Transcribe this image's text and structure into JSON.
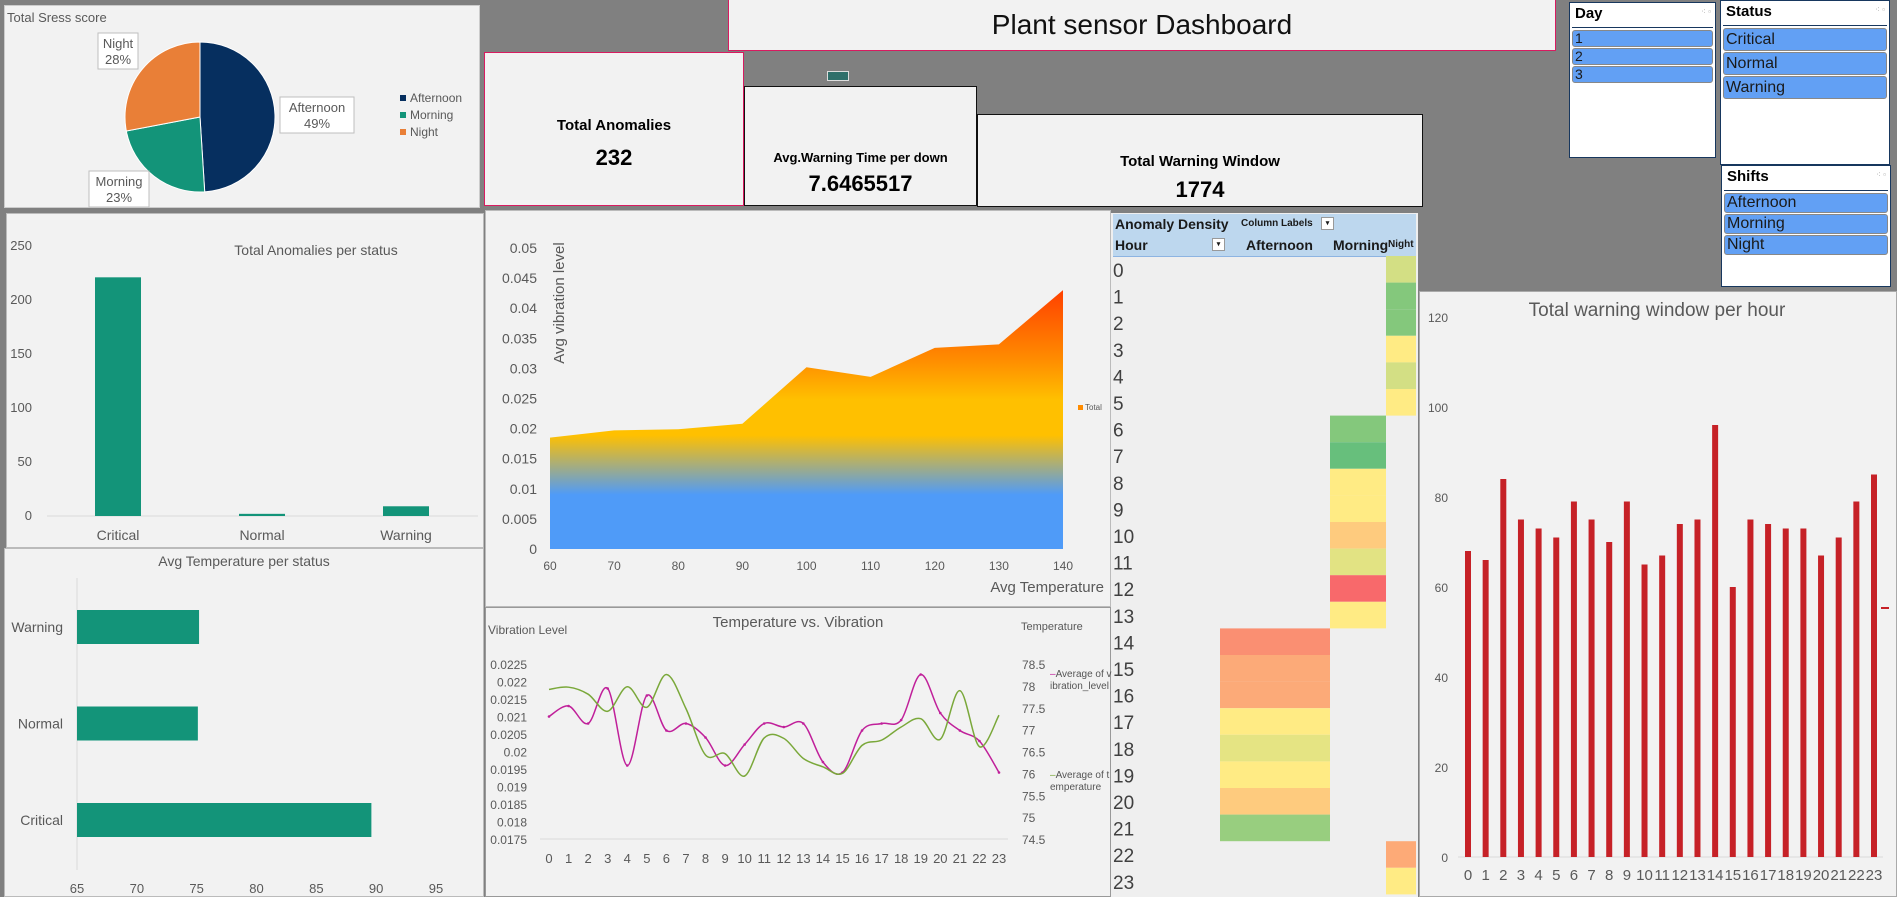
{
  "header": {
    "title": "Plant sensor Dashboard"
  },
  "kpis": [
    {
      "label": "Total Anomalies",
      "value": "232"
    },
    {
      "label": "Avg.Warning Time per down",
      "value": "7.6465517"
    },
    {
      "label": "Total Warning Window",
      "value": "1774"
    }
  ],
  "slicers": {
    "day": {
      "title": "Day",
      "items": [
        "1",
        "2",
        "3"
      ]
    },
    "status": {
      "title": "Status",
      "items": [
        "Critical",
        "Normal",
        "Warning"
      ]
    },
    "shifts": {
      "title": "Shifts",
      "items": [
        "Afternoon",
        "Morning",
        "Night"
      ]
    }
  },
  "icons": {
    "slicer_clear": "multi-select-icon",
    "pivot_filter": "dropdown-filter-icon",
    "table_tool": "table-icon"
  },
  "chart_data": [
    {
      "id": "stress",
      "type": "pie",
      "title": "Total Sress score",
      "categories": [
        "Afternoon",
        "Morning",
        "Night"
      ],
      "values": [
        49,
        23,
        28
      ],
      "data_labels": [
        "49%",
        "23%",
        "28%"
      ],
      "colors": [
        "#062f5f",
        "#139479",
        "#e97f37"
      ],
      "legend_position": "right"
    },
    {
      "id": "anomalies",
      "type": "bar",
      "title": "Total  Anomalies per status",
      "categories": [
        "Critical",
        "Normal",
        "Warning"
      ],
      "values": [
        221,
        2,
        9
      ],
      "ylim": [
        0,
        250
      ],
      "yticks": [
        "0",
        "50",
        "100",
        "150",
        "200",
        "250"
      ],
      "color": "#139479"
    },
    {
      "id": "avgtemp",
      "type": "bar",
      "orientation": "horizontal",
      "title": "Avg Temperature per status",
      "categories": [
        "Warning",
        "Normal",
        "Critical"
      ],
      "values": [
        75.2,
        75.1,
        89.6
      ],
      "xlim": [
        65,
        95
      ],
      "xticks": [
        "65",
        "70",
        "75",
        "80",
        "85",
        "90",
        "95"
      ],
      "color": "#139479"
    },
    {
      "id": "area",
      "type": "area",
      "xlabel": "Avg Temperature",
      "ylabel": "Avg vibration level",
      "x": [
        60,
        70,
        80,
        90,
        100,
        110,
        120,
        130,
        140
      ],
      "y": [
        0.0185,
        0.0197,
        0.0199,
        0.0208,
        0.0302,
        0.0286,
        0.0334,
        0.034,
        0.043
      ],
      "xticks": [
        "60",
        "70",
        "80",
        "90",
        "100",
        "110",
        "120",
        "130",
        "140"
      ],
      "yticks": [
        "0",
        "0.005",
        "0.01",
        "0.015",
        "0.02",
        "0.025",
        "0.03",
        "0.035",
        "0.04",
        "0.045",
        "0.05"
      ],
      "ylim": [
        0,
        0.05
      ],
      "legend": [
        "Total"
      ],
      "gradient_colors": [
        "#4f9bf8",
        "#ffc000",
        "#ff8c00",
        "#ff3300"
      ]
    },
    {
      "id": "tempvib",
      "type": "line",
      "title": "Temperature vs. Vibration",
      "ylabel": "Vibration Level",
      "y2label": "Temperature",
      "x": [
        "0",
        "1",
        "2",
        "3",
        "4",
        "5",
        "6",
        "7",
        "8",
        "9",
        "10",
        "11",
        "12",
        "13",
        "14",
        "15",
        "16",
        "17",
        "18",
        "19",
        "20",
        "21",
        "22",
        "23"
      ],
      "yticks": [
        "0.0175",
        "0.018",
        "0.0185",
        "0.019",
        "0.0195",
        "0.02",
        "0.0205",
        "0.021",
        "0.0215",
        "0.022",
        "0.0225"
      ],
      "y2ticks": [
        "74.5",
        "75",
        "75.5",
        "76",
        "76.5",
        "77",
        "77.5",
        "78",
        "78.5"
      ],
      "ylim": [
        0.0175,
        0.0225
      ],
      "y2lim": [
        74.5,
        78.5
      ],
      "series": [
        {
          "name": "Average of vibration_level",
          "axis": "left",
          "color": "#c0209a",
          "values": [
            0.021,
            0.0213,
            0.0208,
            0.0218,
            0.0196,
            0.0216,
            0.0206,
            0.0208,
            0.0204,
            0.0196,
            0.0202,
            0.0208,
            0.0207,
            0.0208,
            0.0197,
            0.0194,
            0.0206,
            0.0208,
            0.0209,
            0.0222,
            0.0211,
            0.0206,
            0.0203,
            0.0194
          ]
        },
        {
          "name": "Average of temperature",
          "axis": "right",
          "color": "#7aa83a",
          "values": [
            77.92,
            77.97,
            77.81,
            77.42,
            77.98,
            77.51,
            78.26,
            77.48,
            76.42,
            76.45,
            75.94,
            76.81,
            76.8,
            76.34,
            76.15,
            76.0,
            76.64,
            76.76,
            77.06,
            77.25,
            76.78,
            77.89,
            76.61,
            77.33
          ]
        }
      ]
    },
    {
      "id": "density",
      "type": "heatmap",
      "title": "Anomaly Density",
      "column_labels_caption": "Column Labels",
      "row_header": "Hour",
      "columns": [
        "Afternoon",
        "Morning",
        "Night"
      ],
      "rows": [
        "0",
        "1",
        "2",
        "3",
        "4",
        "5",
        "6",
        "7",
        "8",
        "9",
        "10",
        "11",
        "12",
        "13",
        "14",
        "15",
        "16",
        "17",
        "18",
        "19",
        "20",
        "21",
        "22",
        "23"
      ],
      "cells": [
        {
          "hour": 0,
          "col": "Night",
          "color": "#d3df84"
        },
        {
          "hour": 1,
          "col": "Night",
          "color": "#84c87c"
        },
        {
          "hour": 2,
          "col": "Night",
          "color": "#84c87c"
        },
        {
          "hour": 3,
          "col": "Night",
          "color": "#ffeb84"
        },
        {
          "hour": 4,
          "col": "Night",
          "color": "#d3df84"
        },
        {
          "hour": 5,
          "col": "Night",
          "color": "#ffeb84"
        },
        {
          "hour": 6,
          "col": "Morning",
          "color": "#84c87c"
        },
        {
          "hour": 7,
          "col": "Morning",
          "color": "#67bf7c"
        },
        {
          "hour": 8,
          "col": "Morning",
          "color": "#ffeb84"
        },
        {
          "hour": 9,
          "col": "Morning",
          "color": "#ffeb84"
        },
        {
          "hour": 10,
          "col": "Morning",
          "color": "#fecb7e"
        },
        {
          "hour": 11,
          "col": "Morning",
          "color": "#e2e383"
        },
        {
          "hour": 12,
          "col": "Morning",
          "color": "#f8696b"
        },
        {
          "hour": 13,
          "col": "Morning",
          "color": "#ffeb84"
        },
        {
          "hour": 14,
          "col": "Afternoon",
          "color": "#fa8f72"
        },
        {
          "hour": 15,
          "col": "Afternoon",
          "color": "#fcaa78"
        },
        {
          "hour": 16,
          "col": "Afternoon",
          "color": "#fcaa78"
        },
        {
          "hour": 17,
          "col": "Afternoon",
          "color": "#ffeb84"
        },
        {
          "hour": 18,
          "col": "Afternoon",
          "color": "#e5e483"
        },
        {
          "hour": 19,
          "col": "Afternoon",
          "color": "#ffeb84"
        },
        {
          "hour": 20,
          "col": "Afternoon",
          "color": "#fecb7e"
        },
        {
          "hour": 21,
          "col": "Afternoon",
          "color": "#98ce7f"
        },
        {
          "hour": 22,
          "col": "Night",
          "color": "#fdaa77"
        },
        {
          "hour": 23,
          "col": "Night",
          "color": "#ffeb84"
        }
      ]
    },
    {
      "id": "warnhour",
      "type": "bar",
      "title": "Total warning window per hour",
      "categories": [
        "0",
        "1",
        "2",
        "3",
        "4",
        "5",
        "6",
        "7",
        "8",
        "9",
        "10",
        "11",
        "12",
        "13",
        "14",
        "15",
        "16",
        "17",
        "18",
        "19",
        "20",
        "21",
        "22",
        "23"
      ],
      "values": [
        68,
        66,
        84,
        75,
        73,
        71,
        79,
        75,
        70,
        79,
        65,
        67,
        74,
        75,
        96,
        60,
        75,
        74,
        73,
        73,
        67,
        71,
        79,
        85
      ],
      "ylim": [
        0,
        120
      ],
      "yticks": [
        "0",
        "20",
        "40",
        "60",
        "80",
        "100",
        "120"
      ],
      "color": "#c62127"
    }
  ]
}
